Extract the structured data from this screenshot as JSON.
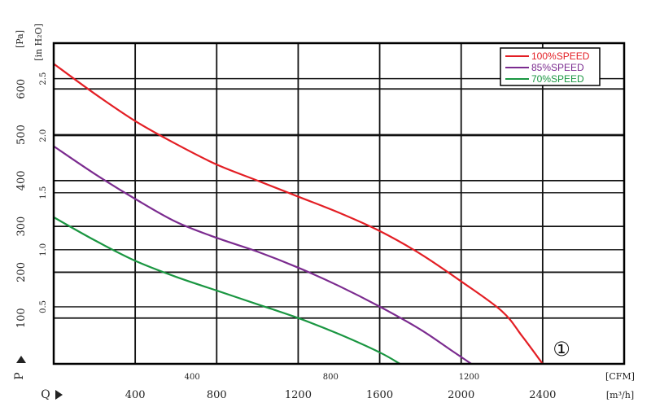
{
  "chart_data": {
    "type": "line",
    "xlabel": "Q",
    "x_units_primary": "[m³/h]",
    "x_units_secondary": "[CFM]",
    "ylabel": "P",
    "y_units_primary": "[Pa]",
    "y_units_secondary": "[in H₂O]",
    "xlim": [
      0,
      2800
    ],
    "ylim": [
      0,
      700
    ],
    "x_ticks": [
      "400",
      "800",
      "1200",
      "1600",
      "2000",
      "2400"
    ],
    "x_ticks_secondary": [
      "400",
      "800",
      "1200"
    ],
    "y_ticks": [
      "100",
      "200",
      "300",
      "400",
      "500",
      "600"
    ],
    "y_ticks_secondary": [
      "0.5",
      "1.0",
      "1.5",
      "2.0",
      "2.5"
    ],
    "grid": true,
    "legend_position": "top-right",
    "annotation": "①",
    "series": [
      {
        "name": "100%SPEED",
        "color": "#e31e24",
        "x": [
          0,
          200,
          400,
          600,
          800,
          1000,
          1200,
          1400,
          1600,
          1800,
          2000,
          2200,
          2300,
          2400
        ],
        "y": [
          655,
          590,
          530,
          480,
          435,
          400,
          365,
          330,
          290,
          240,
          180,
          115,
          60,
          0
        ]
      },
      {
        "name": "85%SPEED",
        "color": "#7b2b8f",
        "x": [
          0,
          200,
          400,
          600,
          800,
          1000,
          1200,
          1400,
          1600,
          1800,
          1950,
          2050
        ],
        "y": [
          475,
          415,
          360,
          310,
          275,
          245,
          210,
          170,
          125,
          75,
          30,
          0
        ]
      },
      {
        "name": "70%SPEED",
        "color": "#1a9641",
        "x": [
          0,
          200,
          400,
          600,
          800,
          1000,
          1200,
          1400,
          1600,
          1700
        ],
        "y": [
          320,
          270,
          225,
          190,
          160,
          130,
          100,
          65,
          25,
          0
        ]
      }
    ]
  }
}
